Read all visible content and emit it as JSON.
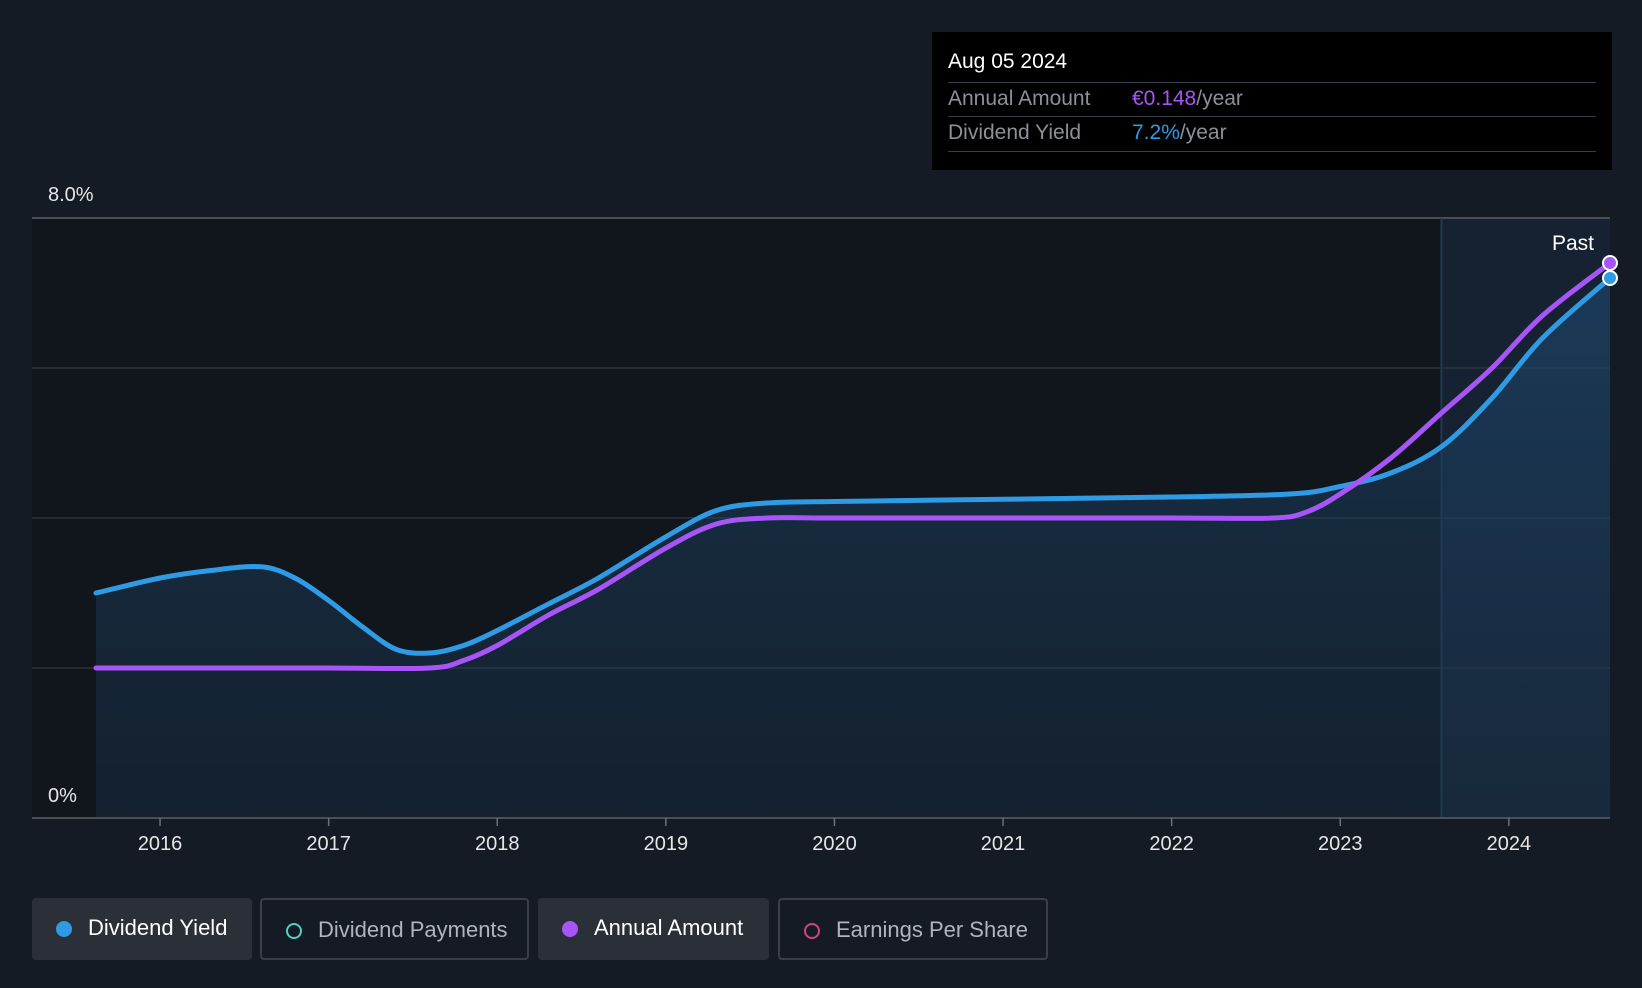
{
  "tooltip": {
    "date": "Aug 05 2024",
    "rows": [
      {
        "label": "Annual Amount",
        "value": "€0.148",
        "unit": "/year",
        "color": "#a855f7"
      },
      {
        "label": "Dividend Yield",
        "value": "7.2%",
        "unit": "/year",
        "color": "#2f9be5"
      }
    ]
  },
  "legend": [
    {
      "label": "Dividend Yield",
      "color": "#2f9be5",
      "filled": true,
      "active": true
    },
    {
      "label": "Dividend Payments",
      "color": "#4fd1c5",
      "filled": false,
      "active": false
    },
    {
      "label": "Annual Amount",
      "color": "#a855f7",
      "filled": true,
      "active": true
    },
    {
      "label": "Earnings Per Share",
      "color": "#d0457e",
      "filled": false,
      "active": false
    }
  ],
  "chart_data": {
    "type": "line",
    "y_label_top": "8.0%",
    "y_label_bottom": "0%",
    "ylim": [
      0,
      8.0
    ],
    "xlim": [
      2015.62,
      2024.6
    ],
    "x_ticks": [
      "2016",
      "2017",
      "2018",
      "2019",
      "2020",
      "2021",
      "2022",
      "2023",
      "2024"
    ],
    "past_label": "Past",
    "past_start": 2023.6,
    "grid": true,
    "series": [
      {
        "name": "Dividend Yield",
        "color": "#2f9be5",
        "area": true,
        "points": [
          [
            2015.62,
            3.0
          ],
          [
            2016.0,
            3.2
          ],
          [
            2016.3,
            3.3
          ],
          [
            2016.6,
            3.35
          ],
          [
            2016.8,
            3.2
          ],
          [
            2017.0,
            2.9
          ],
          [
            2017.2,
            2.55
          ],
          [
            2017.4,
            2.25
          ],
          [
            2017.6,
            2.2
          ],
          [
            2017.8,
            2.3
          ],
          [
            2018.0,
            2.5
          ],
          [
            2018.3,
            2.85
          ],
          [
            2018.6,
            3.2
          ],
          [
            2019.0,
            3.75
          ],
          [
            2019.3,
            4.1
          ],
          [
            2019.6,
            4.2
          ],
          [
            2020.0,
            4.22
          ],
          [
            2021.0,
            4.25
          ],
          [
            2022.0,
            4.28
          ],
          [
            2022.7,
            4.32
          ],
          [
            2023.0,
            4.42
          ],
          [
            2023.3,
            4.6
          ],
          [
            2023.6,
            4.95
          ],
          [
            2023.9,
            5.6
          ],
          [
            2024.2,
            6.4
          ],
          [
            2024.6,
            7.2
          ]
        ]
      },
      {
        "name": "Annual Amount",
        "color": "#a855f7",
        "area": false,
        "points": [
          [
            2015.62,
            2.0
          ],
          [
            2016.5,
            2.0
          ],
          [
            2017.0,
            2.0
          ],
          [
            2017.6,
            2.0
          ],
          [
            2017.8,
            2.1
          ],
          [
            2018.0,
            2.3
          ],
          [
            2018.3,
            2.7
          ],
          [
            2018.6,
            3.05
          ],
          [
            2019.0,
            3.6
          ],
          [
            2019.3,
            3.92
          ],
          [
            2019.6,
            4.0
          ],
          [
            2020.0,
            4.0
          ],
          [
            2021.0,
            4.0
          ],
          [
            2022.0,
            4.0
          ],
          [
            2022.6,
            4.0
          ],
          [
            2022.8,
            4.08
          ],
          [
            2023.0,
            4.32
          ],
          [
            2023.3,
            4.8
          ],
          [
            2023.6,
            5.4
          ],
          [
            2023.9,
            6.0
          ],
          [
            2024.2,
            6.7
          ],
          [
            2024.6,
            7.4
          ]
        ]
      }
    ]
  }
}
